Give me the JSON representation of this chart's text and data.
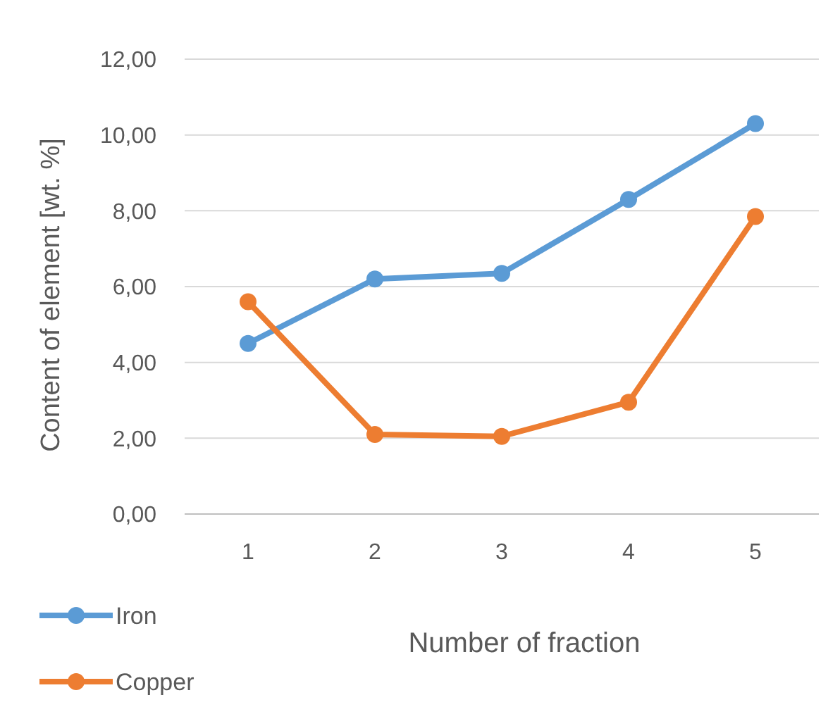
{
  "chart_data": {
    "type": "line",
    "xlabel": "Number of fraction",
    "ylabel": "Content of element [wt. %]",
    "categories": [
      "1",
      "2",
      "3",
      "4",
      "5"
    ],
    "series": [
      {
        "name": "Iron",
        "color": "#5b9bd5",
        "values": [
          4.5,
          6.2,
          6.35,
          8.3,
          10.3
        ]
      },
      {
        "name": "Copper",
        "color": "#ed7d31",
        "values": [
          5.6,
          2.1,
          2.05,
          2.95,
          7.85
        ]
      }
    ],
    "ylim": [
      0,
      12
    ],
    "yticks": [
      {
        "value": 0,
        "label": "0,00"
      },
      {
        "value": 2,
        "label": "2,00"
      },
      {
        "value": 4,
        "label": "4,00"
      },
      {
        "value": 6,
        "label": "6,00"
      },
      {
        "value": 8,
        "label": "8,00"
      },
      {
        "value": 10,
        "label": "10,00"
      },
      {
        "value": 12,
        "label": "12,00"
      }
    ],
    "grid": "y",
    "legend": "bottom left",
    "marker": "circle",
    "line_style": "solid"
  }
}
